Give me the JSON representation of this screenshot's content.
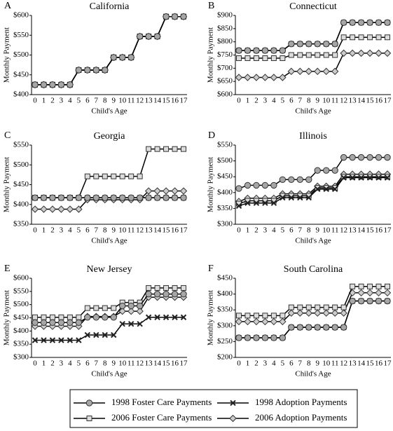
{
  "chart_data": [
    {
      "type": "line",
      "label": "A",
      "title": "California",
      "xlabel": "Child's Age",
      "ylabel": "Monthly Payment",
      "categories": [
        "0",
        "1",
        "2",
        "3",
        "4",
        "5",
        "6",
        "7",
        "8",
        "9",
        "10",
        "11",
        "12",
        "13",
        "14",
        "15",
        "16",
        "17"
      ],
      "ylim": [
        400,
        600
      ],
      "yticks": [
        {
          "value": 400,
          "label": "$400"
        },
        {
          "value": 450,
          "label": "$450"
        },
        {
          "value": 500,
          "label": "$500"
        },
        {
          "value": 550,
          "label": "$550"
        },
        {
          "value": 600,
          "label": "$600"
        }
      ],
      "series": [
        {
          "name": "1998 Foster Care Payments",
          "marker": "circle",
          "color": "#a6a6a6",
          "values": [
            425,
            425,
            425,
            425,
            425,
            462,
            462,
            462,
            462,
            494,
            494,
            494,
            547,
            547,
            547,
            597,
            597,
            597
          ]
        },
        {
          "name": "1998 Adoption Payments",
          "marker": "x",
          "color": "#222222",
          "values": [
            425,
            425,
            425,
            425,
            425,
            462,
            462,
            462,
            462,
            494,
            494,
            494,
            547,
            547,
            547,
            597,
            597,
            597
          ]
        },
        {
          "name": "2006 Foster Care Payments",
          "marker": "square",
          "color": "#dcdcdc",
          "values": [
            425,
            425,
            425,
            425,
            425,
            462,
            462,
            462,
            462,
            494,
            494,
            494,
            547,
            547,
            547,
            597,
            597,
            597
          ]
        },
        {
          "name": "2006 Adoption Payments",
          "marker": "diamond",
          "color": "#cccccc",
          "values": [
            425,
            425,
            425,
            425,
            425,
            462,
            462,
            462,
            462,
            494,
            494,
            494,
            547,
            547,
            547,
            597,
            597,
            597
          ]
        }
      ]
    },
    {
      "type": "line",
      "label": "B",
      "title": "Connecticut",
      "xlabel": "Child's Age",
      "ylabel": "Monthly Payment",
      "categories": [
        "0",
        "1",
        "2",
        "3",
        "4",
        "5",
        "6",
        "7",
        "8",
        "9",
        "10",
        "11",
        "12",
        "13",
        "14",
        "15",
        "16",
        "17"
      ],
      "ylim": [
        600,
        900
      ],
      "yticks": [
        {
          "value": 600,
          "label": "$600"
        },
        {
          "value": 650,
          "label": "$650"
        },
        {
          "value": 700,
          "label": "$700"
        },
        {
          "value": 750,
          "label": "$750"
        },
        {
          "value": 800,
          "label": "$800"
        },
        {
          "value": 850,
          "label": "$850"
        },
        {
          "value": 900,
          "label": "$900"
        }
      ],
      "series": [
        {
          "marker": "circle",
          "color": "#a6a6a6",
          "values": [
            767,
            767,
            767,
            767,
            767,
            767,
            792,
            792,
            792,
            792,
            792,
            792,
            873,
            873,
            873,
            873,
            873,
            873
          ]
        },
        {
          "marker": "x",
          "color": "#222222",
          "values": [
            767,
            767,
            767,
            767,
            767,
            767,
            792,
            792,
            792,
            792,
            792,
            792,
            873,
            873,
            873,
            873,
            873,
            873
          ]
        },
        {
          "marker": "square",
          "color": "#dcdcdc",
          "values": [
            738,
            738,
            738,
            738,
            738,
            738,
            750,
            750,
            750,
            750,
            750,
            750,
            817,
            817,
            817,
            817,
            817,
            817
          ]
        },
        {
          "marker": "diamond",
          "color": "#cccccc",
          "values": [
            665,
            665,
            665,
            665,
            665,
            665,
            688,
            688,
            688,
            688,
            688,
            688,
            757,
            757,
            757,
            757,
            757,
            757
          ]
        }
      ]
    },
    {
      "type": "line",
      "label": "C",
      "title": "Georgia",
      "xlabel": "Child's Age",
      "ylabel": "Monthly Payment",
      "categories": [
        "0",
        "1",
        "2",
        "3",
        "4",
        "5",
        "6",
        "7",
        "8",
        "9",
        "10",
        "11",
        "12",
        "13",
        "14",
        "15",
        "16",
        "17"
      ],
      "ylim": [
        350,
        550
      ],
      "yticks": [
        {
          "value": 350,
          "label": "$350"
        },
        {
          "value": 400,
          "label": "$400"
        },
        {
          "value": 450,
          "label": "$450"
        },
        {
          "value": 500,
          "label": "$500"
        },
        {
          "value": 550,
          "label": "$550"
        }
      ],
      "series": [
        {
          "marker": "circle",
          "color": "#a6a6a6",
          "values": [
            417,
            417,
            417,
            417,
            417,
            417,
            417,
            417,
            417,
            417,
            417,
            417,
            417,
            417,
            417,
            417,
            417,
            417
          ]
        },
        {
          "marker": "x",
          "color": "#222222",
          "values": [
            417,
            417,
            417,
            417,
            417,
            417,
            417,
            417,
            417,
            417,
            417,
            417,
            417,
            417,
            417,
            417,
            417,
            417
          ]
        },
        {
          "marker": "square",
          "color": "#dcdcdc",
          "values": [
            417,
            417,
            417,
            417,
            417,
            417,
            471,
            471,
            471,
            471,
            471,
            471,
            471,
            540,
            540,
            540,
            540,
            540
          ]
        },
        {
          "marker": "diamond",
          "color": "#cccccc",
          "values": [
            388,
            388,
            388,
            388,
            388,
            388,
            412,
            412,
            412,
            412,
            412,
            412,
            412,
            434,
            434,
            434,
            434,
            434
          ]
        }
      ]
    },
    {
      "type": "line",
      "label": "D",
      "title": "Illinois",
      "xlabel": "Child's Age",
      "ylabel": "Monthly Payment",
      "categories": [
        "0",
        "1",
        "2",
        "3",
        "4",
        "5",
        "6",
        "7",
        "8",
        "9",
        "10",
        "11",
        "12",
        "13",
        "14",
        "15",
        "16",
        "17"
      ],
      "ylim": [
        300,
        550
      ],
      "yticks": [
        {
          "value": 300,
          "label": "$300"
        },
        {
          "value": 350,
          "label": "$350"
        },
        {
          "value": 400,
          "label": "$400"
        },
        {
          "value": 450,
          "label": "$450"
        },
        {
          "value": 500,
          "label": "$500"
        },
        {
          "value": 550,
          "label": "$550"
        }
      ],
      "series": [
        {
          "marker": "circle",
          "color": "#a6a6a6",
          "values": [
            413,
            423,
            423,
            423,
            423,
            441,
            441,
            441,
            441,
            470,
            470,
            470,
            511,
            511,
            511,
            511,
            511,
            511
          ]
        },
        {
          "marker": "x",
          "color": "#222222",
          "values": [
            358,
            367,
            367,
            367,
            367,
            384,
            384,
            384,
            384,
            411,
            411,
            411,
            447,
            447,
            447,
            447,
            447,
            447
          ]
        },
        {
          "marker": "square",
          "color": "#dcdcdc",
          "values": [
            365,
            374,
            374,
            374,
            374,
            390,
            390,
            390,
            390,
            415,
            415,
            415,
            450,
            450,
            450,
            450,
            450,
            450
          ]
        },
        {
          "marker": "diamond",
          "color": "#cccccc",
          "values": [
            372,
            382,
            382,
            382,
            382,
            396,
            396,
            396,
            396,
            420,
            420,
            420,
            458,
            458,
            458,
            458,
            458,
            458
          ]
        }
      ]
    },
    {
      "type": "line",
      "label": "E",
      "title": "New Jersey",
      "xlabel": "Child's Age",
      "ylabel": "Monthly Payment",
      "categories": [
        "0",
        "1",
        "2",
        "3",
        "4",
        "5",
        "6",
        "7",
        "8",
        "9",
        "10",
        "11",
        "12",
        "13",
        "14",
        "15",
        "16",
        "17"
      ],
      "ylim": [
        300,
        600
      ],
      "yticks": [
        {
          "value": 300,
          "label": "$300"
        },
        {
          "value": 350,
          "label": "$350"
        },
        {
          "value": 400,
          "label": "$400"
        },
        {
          "value": 450,
          "label": "$450"
        },
        {
          "value": 500,
          "label": "$500"
        },
        {
          "value": 550,
          "label": "$550"
        },
        {
          "value": 600,
          "label": "$600"
        }
      ],
      "series": [
        {
          "marker": "circle",
          "color": "#a6a6a6",
          "values": [
            432,
            432,
            432,
            432,
            432,
            432,
            452,
            452,
            452,
            452,
            495,
            495,
            495,
            540,
            540,
            540,
            540,
            540
          ]
        },
        {
          "marker": "x",
          "color": "#222222",
          "values": [
            365,
            365,
            365,
            365,
            365,
            365,
            385,
            385,
            385,
            385,
            427,
            427,
            427,
            452,
            452,
            452,
            452,
            452
          ]
        },
        {
          "marker": "square",
          "color": "#dcdcdc",
          "values": [
            452,
            452,
            452,
            452,
            452,
            452,
            487,
            487,
            487,
            487,
            508,
            508,
            508,
            563,
            563,
            563,
            563,
            563
          ]
        },
        {
          "marker": "diamond",
          "color": "#cccccc",
          "values": [
            418,
            418,
            418,
            418,
            418,
            418,
            455,
            455,
            455,
            455,
            475,
            475,
            475,
            528,
            528,
            528,
            528,
            528
          ]
        }
      ]
    },
    {
      "type": "line",
      "label": "F",
      "title": "South Carolina",
      "xlabel": "Child's Age",
      "ylabel": "Monthly Payment",
      "categories": [
        "0",
        "1",
        "2",
        "3",
        "4",
        "5",
        "6",
        "7",
        "8",
        "9",
        "10",
        "11",
        "12",
        "13",
        "14",
        "15",
        "16",
        "17"
      ],
      "ylim": [
        200,
        450
      ],
      "yticks": [
        {
          "value": 200,
          "label": "$200"
        },
        {
          "value": 250,
          "label": "$250"
        },
        {
          "value": 300,
          "label": "$300"
        },
        {
          "value": 350,
          "label": "$350"
        },
        {
          "value": 400,
          "label": "$400"
        },
        {
          "value": 450,
          "label": "$450"
        }
      ],
      "series": [
        {
          "marker": "circle",
          "color": "#a6a6a6",
          "values": [
            262,
            262,
            262,
            262,
            262,
            262,
            295,
            295,
            295,
            295,
            295,
            295,
            295,
            378,
            378,
            378,
            378,
            378
          ]
        },
        {
          "marker": "x",
          "color": "#222222",
          "values": [
            262,
            262,
            262,
            262,
            262,
            262,
            295,
            295,
            295,
            295,
            295,
            295,
            295,
            378,
            378,
            378,
            378,
            378
          ]
        },
        {
          "marker": "square",
          "color": "#dcdcdc",
          "values": [
            332,
            332,
            332,
            332,
            332,
            332,
            358,
            358,
            358,
            358,
            358,
            358,
            358,
            424,
            424,
            424,
            424,
            424
          ]
        },
        {
          "marker": "diamond",
          "color": "#cccccc",
          "values": [
            313,
            313,
            313,
            313,
            313,
            313,
            340,
            340,
            340,
            340,
            340,
            340,
            340,
            404,
            404,
            404,
            404,
            404
          ]
        }
      ]
    }
  ]
}
